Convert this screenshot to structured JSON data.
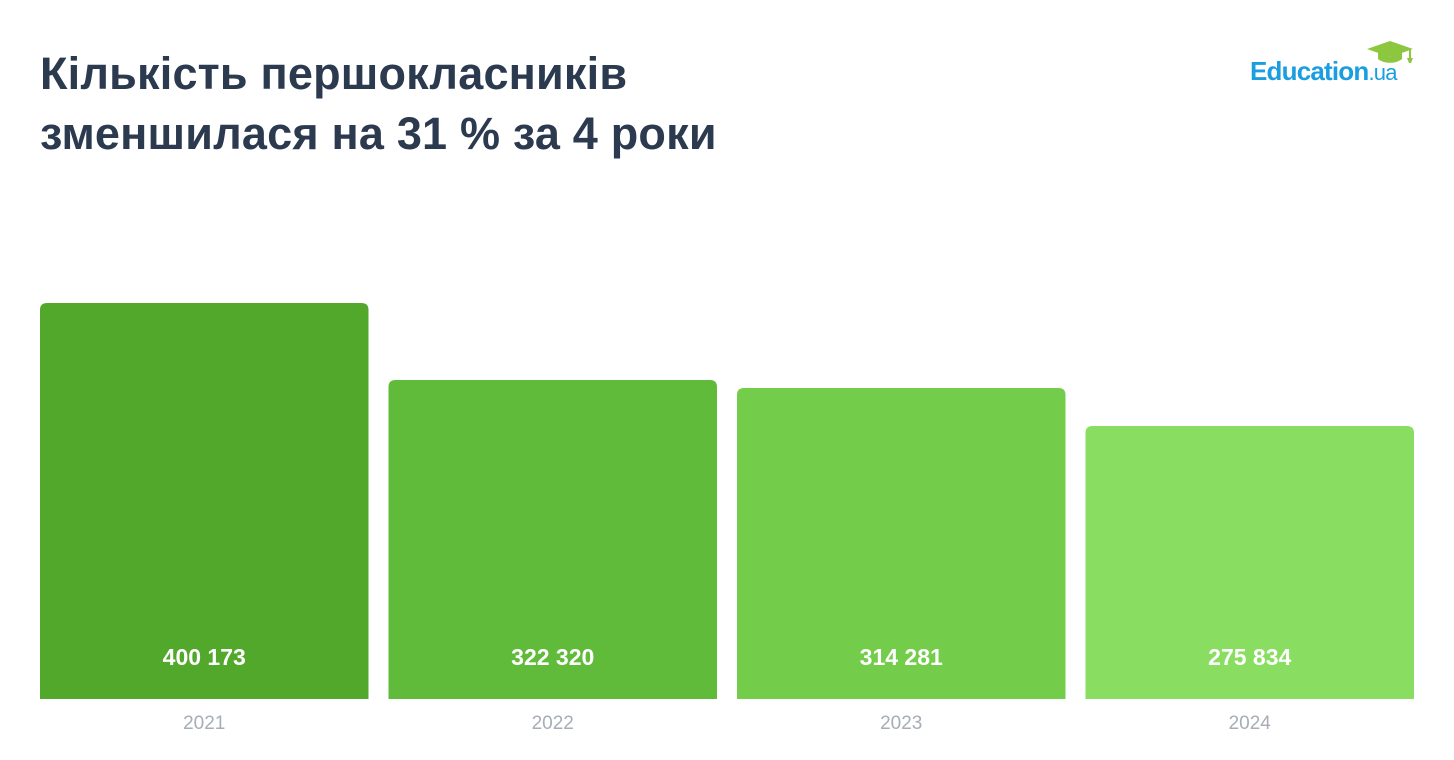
{
  "header": {
    "title_line1": "Кількість першокласників",
    "title_line2": "зменшилася на 31 % за 4 роки"
  },
  "logo": {
    "name": "Education",
    "suffix": ".ua",
    "icon": "graduation-cap-icon",
    "color": "#1a9ee0",
    "cap_color": "#8dc63f"
  },
  "chart_data": {
    "type": "bar",
    "categories": [
      "2021",
      "2022",
      "2023",
      "2024"
    ],
    "values": [
      400173,
      322320,
      314281,
      275834
    ],
    "value_labels": [
      "400 173",
      "322 320",
      "314 281",
      "275 834"
    ],
    "bar_colors": [
      "#52a82a",
      "#61bb3a",
      "#73cd4a",
      "#89de62"
    ],
    "ylim": [
      0,
      400173
    ],
    "grid": false,
    "legend": "none",
    "xlabel": "",
    "ylabel": ""
  }
}
